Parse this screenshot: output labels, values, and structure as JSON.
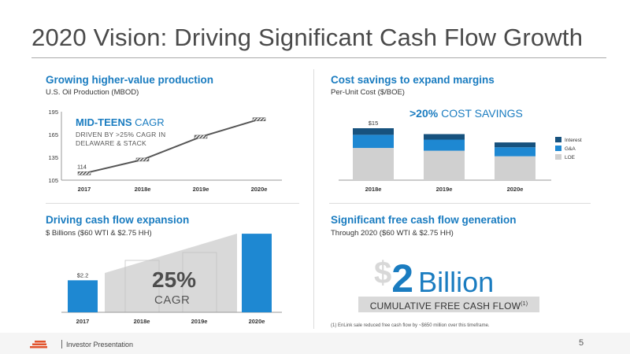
{
  "title": "2020 Vision: Driving Significant Cash Flow Growth",
  "panels": {
    "production": {
      "title": "Growing higher-value production",
      "subtitle": "U.S. Oil Production (MBOD)",
      "callout_bold": "MID-TEENS",
      "callout_rest": " CAGR",
      "callout_line1": "DRIVEN BY >25% CAGR IN",
      "callout_line2": "DELAWARE & STACK"
    },
    "cost": {
      "title": "Cost savings to expand margins",
      "subtitle": "Per-Unit Cost ($/BOE)",
      "savings_bold": ">20%",
      "savings_rest": " COST SAVINGS"
    },
    "cashflow": {
      "title": "Driving cash flow expansion",
      "subtitle": "$ Billions ($60 WTI & $2.75 HH)",
      "cagr_value": "25%",
      "cagr_label": "CAGR"
    },
    "fcf": {
      "title": "Significant free cash flow generation",
      "subtitle": "Through 2020 ($60 WTI & $2.75 HH)",
      "currency": "$",
      "amount": "2",
      "unit": "Billion",
      "box_label": "CUMULATIVE FREE CASH FLOW",
      "box_sup": "(1)",
      "footnote": "(1) EnLink sale reduced free cash flow by ~$650 million over this timeframe."
    }
  },
  "footer": {
    "text": "Investor Presentation",
    "page": "5"
  },
  "chart_data": [
    {
      "type": "line",
      "x": [
        "2017",
        "2018e",
        "2019e",
        "2020e"
      ],
      "values": [
        114,
        132,
        162,
        185
      ],
      "data_labels": [
        "114",
        "",
        "",
        ""
      ],
      "yticks": [
        "195",
        "165",
        "135",
        "105"
      ],
      "ylim": [
        105,
        195
      ],
      "grid": false
    },
    {
      "type": "bar",
      "stacked": true,
      "categories": [
        "2018e",
        "2019e",
        "2020e"
      ],
      "series": [
        {
          "name": "LOE",
          "values": [
            9.3,
            8.5,
            6.9
          ],
          "color": "#d0d0d0"
        },
        {
          "name": "G&A",
          "values": [
            3.8,
            3.2,
            2.6
          ],
          "color": "#1e88d2"
        },
        {
          "name": "Interest",
          "values": [
            1.9,
            1.6,
            1.4
          ],
          "color": "#17527e"
        }
      ],
      "data_labels": [
        "$15",
        "",
        ""
      ],
      "legend": "right"
    },
    {
      "type": "bar",
      "categories": [
        "2017",
        "2018e",
        "2019e",
        "2020e"
      ],
      "values": [
        2.2,
        null,
        null,
        5.4
      ],
      "data_labels": [
        "$2.2",
        "",
        "",
        ""
      ],
      "color": "#1e88d2"
    }
  ],
  "colors": {
    "accent": "#1a7cc0",
    "bar": "#1e88d2",
    "dark": "#17527e",
    "grey": "#d0d0d0"
  }
}
